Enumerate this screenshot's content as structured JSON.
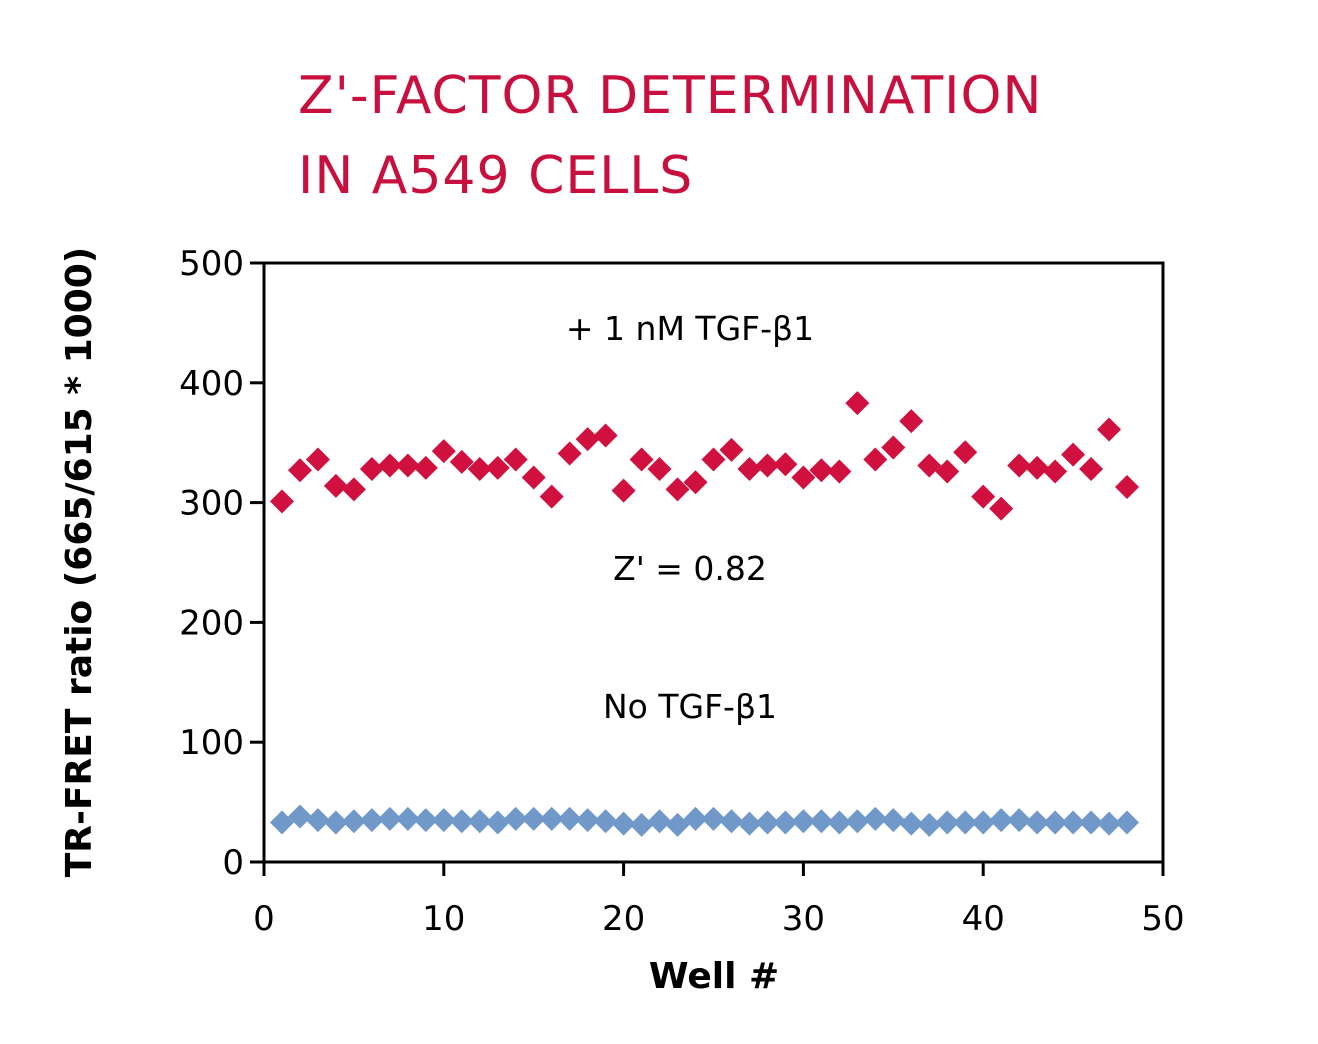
{
  "chart_data": {
    "type": "scatter",
    "title_lines": [
      "Z'-FACTOR DETERMINATION",
      "IN A549 CELLS"
    ],
    "xlabel": "Well #",
    "ylabel": "TR-FRET ratio (665/615 * 1000)",
    "xlim": [
      0,
      50
    ],
    "ylim": [
      0,
      500
    ],
    "xticks": [
      0,
      10,
      20,
      30,
      40,
      50
    ],
    "yticks": [
      0,
      100,
      200,
      300,
      400,
      500
    ],
    "grid": false,
    "annotations": [
      "+ 1 nM TGF-β1",
      "Z' = 0.82",
      "No TGF-β1"
    ],
    "series": [
      {
        "color": "#d0103f",
        "marker": "diamond",
        "x": [
          1,
          2,
          3,
          4,
          5,
          6,
          7,
          8,
          9,
          10,
          11,
          12,
          13,
          14,
          15,
          16,
          17,
          18,
          19,
          20,
          21,
          22,
          23,
          24,
          25,
          26,
          27,
          28,
          29,
          30,
          31,
          32,
          33,
          34,
          35,
          36,
          37,
          38,
          39,
          40,
          41,
          42,
          43,
          44,
          45,
          46,
          47,
          48
        ],
        "y": [
          301,
          327,
          336,
          314,
          311,
          328,
          331,
          331,
          329,
          343,
          334,
          328,
          329,
          336,
          321,
          305,
          341,
          353,
          356,
          310,
          336,
          328,
          311,
          317,
          336,
          344,
          328,
          331,
          332,
          321,
          327,
          326,
          383,
          336,
          346,
          368,
          331,
          326,
          342,
          305,
          295,
          331,
          329,
          326,
          340,
          328,
          361,
          313
        ]
      },
      {
        "color": "#7098c8",
        "marker": "diamond",
        "x": [
          1,
          2,
          3,
          4,
          5,
          6,
          7,
          8,
          9,
          10,
          11,
          12,
          13,
          14,
          15,
          16,
          17,
          18,
          19,
          20,
          21,
          22,
          23,
          24,
          25,
          26,
          27,
          28,
          29,
          30,
          31,
          32,
          33,
          34,
          35,
          36,
          37,
          38,
          39,
          40,
          41,
          42,
          43,
          44,
          45,
          46,
          47,
          48
        ],
        "y": [
          33,
          38,
          35,
          33,
          34,
          35,
          36,
          36,
          35,
          35,
          34,
          34,
          33,
          36,
          36,
          36,
          36,
          35,
          34,
          32,
          31,
          34,
          31,
          36,
          36,
          34,
          32,
          33,
          33,
          34,
          34,
          33,
          34,
          36,
          35,
          32,
          31,
          33,
          33,
          33,
          35,
          35,
          33,
          33,
          33,
          33,
          32,
          33
        ]
      }
    ]
  }
}
